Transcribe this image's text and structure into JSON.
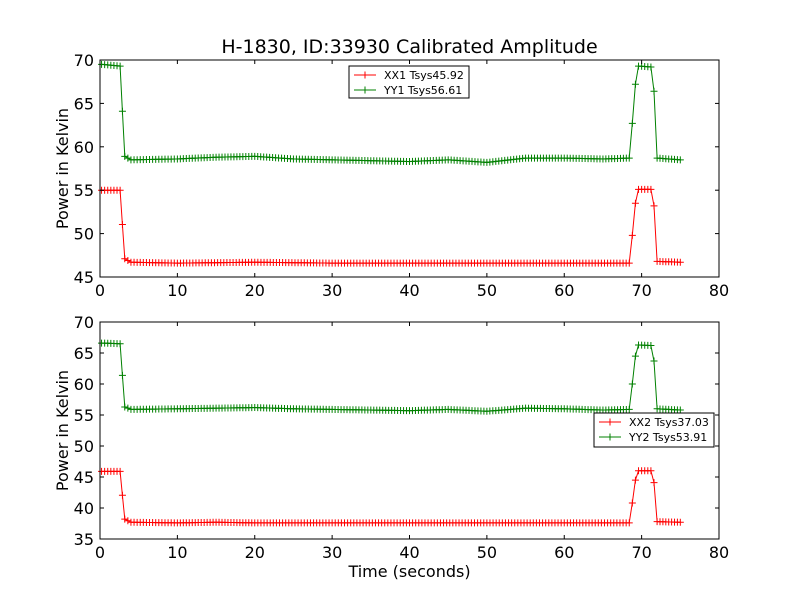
{
  "chart_data": [
    {
      "type": "line",
      "title": "H-1830, ID:33930 Calibrated Amplitude",
      "xlabel": "",
      "ylabel": "Power in Kelvin",
      "xlim": [
        0,
        80
      ],
      "ylim": [
        45,
        70
      ],
      "xticks": [
        "0",
        "10",
        "20",
        "30",
        "40",
        "50",
        "60",
        "70",
        "80"
      ],
      "yticks": [
        "45",
        "50",
        "55",
        "60",
        "65",
        "70"
      ],
      "legend_position": "top-center",
      "grid": false,
      "series": [
        {
          "name": "XX1 Tsys45.92",
          "color": "#ff0000",
          "marker": "plus",
          "points": [
            [
              0.2,
              55.0
            ],
            [
              2.6,
              55.0
            ],
            [
              3.2,
              47.1
            ],
            [
              4,
              46.7
            ],
            [
              10,
              46.6
            ],
            [
              20,
              46.7
            ],
            [
              30,
              46.6
            ],
            [
              40,
              46.6
            ],
            [
              50,
              46.6
            ],
            [
              60,
              46.6
            ],
            [
              68.4,
              46.6
            ],
            [
              68.8,
              49.8
            ],
            [
              69.2,
              53.5
            ],
            [
              69.6,
              55.1
            ],
            [
              71.2,
              55.1
            ],
            [
              71.6,
              53.2
            ],
            [
              72.0,
              46.8
            ],
            [
              75.0,
              46.7
            ]
          ]
        },
        {
          "name": "YY1 Tsys56.61",
          "color": "#008000",
          "marker": "plus",
          "points": [
            [
              0.2,
              69.5
            ],
            [
              2.6,
              69.3
            ],
            [
              3.2,
              58.9
            ],
            [
              4,
              58.5
            ],
            [
              10,
              58.6
            ],
            [
              15,
              58.8
            ],
            [
              20,
              58.9
            ],
            [
              25,
              58.6
            ],
            [
              30,
              58.5
            ],
            [
              35,
              58.4
            ],
            [
              40,
              58.3
            ],
            [
              45,
              58.5
            ],
            [
              50,
              58.2
            ],
            [
              55,
              58.7
            ],
            [
              60,
              58.7
            ],
            [
              65,
              58.6
            ],
            [
              68.4,
              58.7
            ],
            [
              68.8,
              62.7
            ],
            [
              69.2,
              67.2
            ],
            [
              69.6,
              69.3
            ],
            [
              71.2,
              69.2
            ],
            [
              71.6,
              66.4
            ],
            [
              72.0,
              58.7
            ],
            [
              75.0,
              58.5
            ]
          ]
        }
      ]
    },
    {
      "type": "line",
      "title": "",
      "xlabel": "Time (seconds)",
      "ylabel": "Power in Kelvin",
      "xlim": [
        0,
        80
      ],
      "ylim": [
        35,
        70
      ],
      "xticks": [
        "0",
        "10",
        "20",
        "30",
        "40",
        "50",
        "60",
        "70",
        "80"
      ],
      "yticks": [
        "35",
        "40",
        "45",
        "50",
        "55",
        "60",
        "65",
        "70"
      ],
      "legend_position": "center-right",
      "grid": false,
      "series": [
        {
          "name": "XX2 Tsys37.03",
          "color": "#ff0000",
          "marker": "plus",
          "points": [
            [
              0.2,
              45.9
            ],
            [
              2.6,
              45.9
            ],
            [
              3.2,
              38.2
            ],
            [
              4,
              37.7
            ],
            [
              10,
              37.6
            ],
            [
              15,
              37.7
            ],
            [
              20,
              37.6
            ],
            [
              30,
              37.6
            ],
            [
              40,
              37.6
            ],
            [
              50,
              37.6
            ],
            [
              60,
              37.6
            ],
            [
              68.4,
              37.6
            ],
            [
              68.8,
              40.8
            ],
            [
              69.2,
              44.5
            ],
            [
              69.6,
              46.0
            ],
            [
              71.2,
              46.0
            ],
            [
              71.6,
              44.1
            ],
            [
              72.0,
              37.8
            ],
            [
              75.0,
              37.7
            ]
          ]
        },
        {
          "name": "YY2 Tsys53.91",
          "color": "#008000",
          "marker": "plus",
          "points": [
            [
              0.2,
              66.6
            ],
            [
              2.6,
              66.5
            ],
            [
              3.2,
              56.3
            ],
            [
              4,
              55.9
            ],
            [
              10,
              56.0
            ],
            [
              15,
              56.1
            ],
            [
              20,
              56.2
            ],
            [
              25,
              56.0
            ],
            [
              30,
              55.9
            ],
            [
              35,
              55.8
            ],
            [
              40,
              55.7
            ],
            [
              45,
              55.9
            ],
            [
              50,
              55.6
            ],
            [
              55,
              56.1
            ],
            [
              60,
              56.0
            ],
            [
              65,
              55.8
            ],
            [
              68.4,
              55.9
            ],
            [
              68.8,
              60.0
            ],
            [
              69.2,
              64.5
            ],
            [
              69.6,
              66.3
            ],
            [
              71.2,
              66.2
            ],
            [
              71.6,
              63.7
            ],
            [
              72.0,
              56.0
            ],
            [
              75.0,
              55.8
            ]
          ]
        }
      ]
    }
  ]
}
